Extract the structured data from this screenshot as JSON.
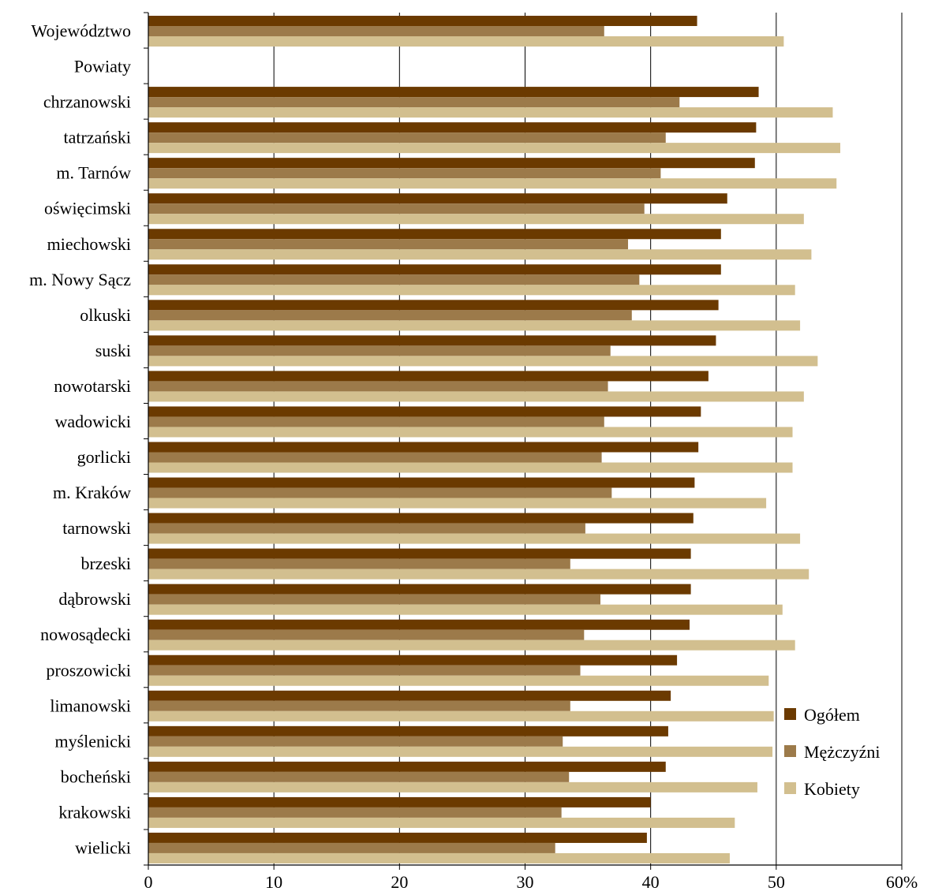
{
  "chart_data": {
    "type": "bar",
    "orientation": "horizontal",
    "title": "",
    "xlabel": "",
    "ylabel": "",
    "xlim": [
      0,
      60
    ],
    "x_ticks": [
      "0",
      "10",
      "20",
      "30",
      "40",
      "50",
      "60%"
    ],
    "grid": "vertical",
    "legend_position": "bottom-right",
    "categories": [
      "Województwo",
      "Powiaty",
      "chrzanowski",
      "tatrzański",
      "m. Tarnów",
      "oświęcimski",
      "miechowski",
      "m. Nowy Sącz",
      "olkuski",
      "suski",
      "nowotarski",
      "wadowicki",
      "gorlicki",
      "m. Kraków",
      "tarnowski",
      "brzeski",
      "dąbrowski",
      "nowosądecki",
      "proszowicki",
      "limanowski",
      "myślenicki",
      "bocheński",
      "krakowski",
      "wielicki"
    ],
    "series": [
      {
        "name": "Ogółem",
        "color": "#6b3a00",
        "values": [
          43.7,
          null,
          48.6,
          48.4,
          48.3,
          46.1,
          45.6,
          45.6,
          45.4,
          45.2,
          44.6,
          44.0,
          43.8,
          43.5,
          43.4,
          43.2,
          43.2,
          43.1,
          42.1,
          41.6,
          41.4,
          41.2,
          40.0,
          39.7
        ]
      },
      {
        "name": "Mężczyźni",
        "color": "#9c7a4a",
        "values": [
          36.3,
          null,
          42.3,
          41.2,
          40.8,
          39.5,
          38.2,
          39.1,
          38.5,
          36.8,
          36.6,
          36.3,
          36.1,
          36.9,
          34.8,
          33.6,
          36.0,
          34.7,
          34.4,
          33.6,
          33.0,
          33.5,
          32.9,
          32.4
        ]
      },
      {
        "name": "Kobiety",
        "color": "#d2bf8f",
        "values": [
          50.6,
          null,
          54.5,
          55.1,
          54.8,
          52.2,
          52.8,
          51.5,
          51.9,
          53.3,
          52.2,
          51.3,
          51.3,
          49.2,
          51.9,
          52.6,
          50.5,
          51.5,
          49.4,
          49.8,
          49.7,
          48.5,
          46.7,
          46.3
        ]
      }
    ]
  }
}
